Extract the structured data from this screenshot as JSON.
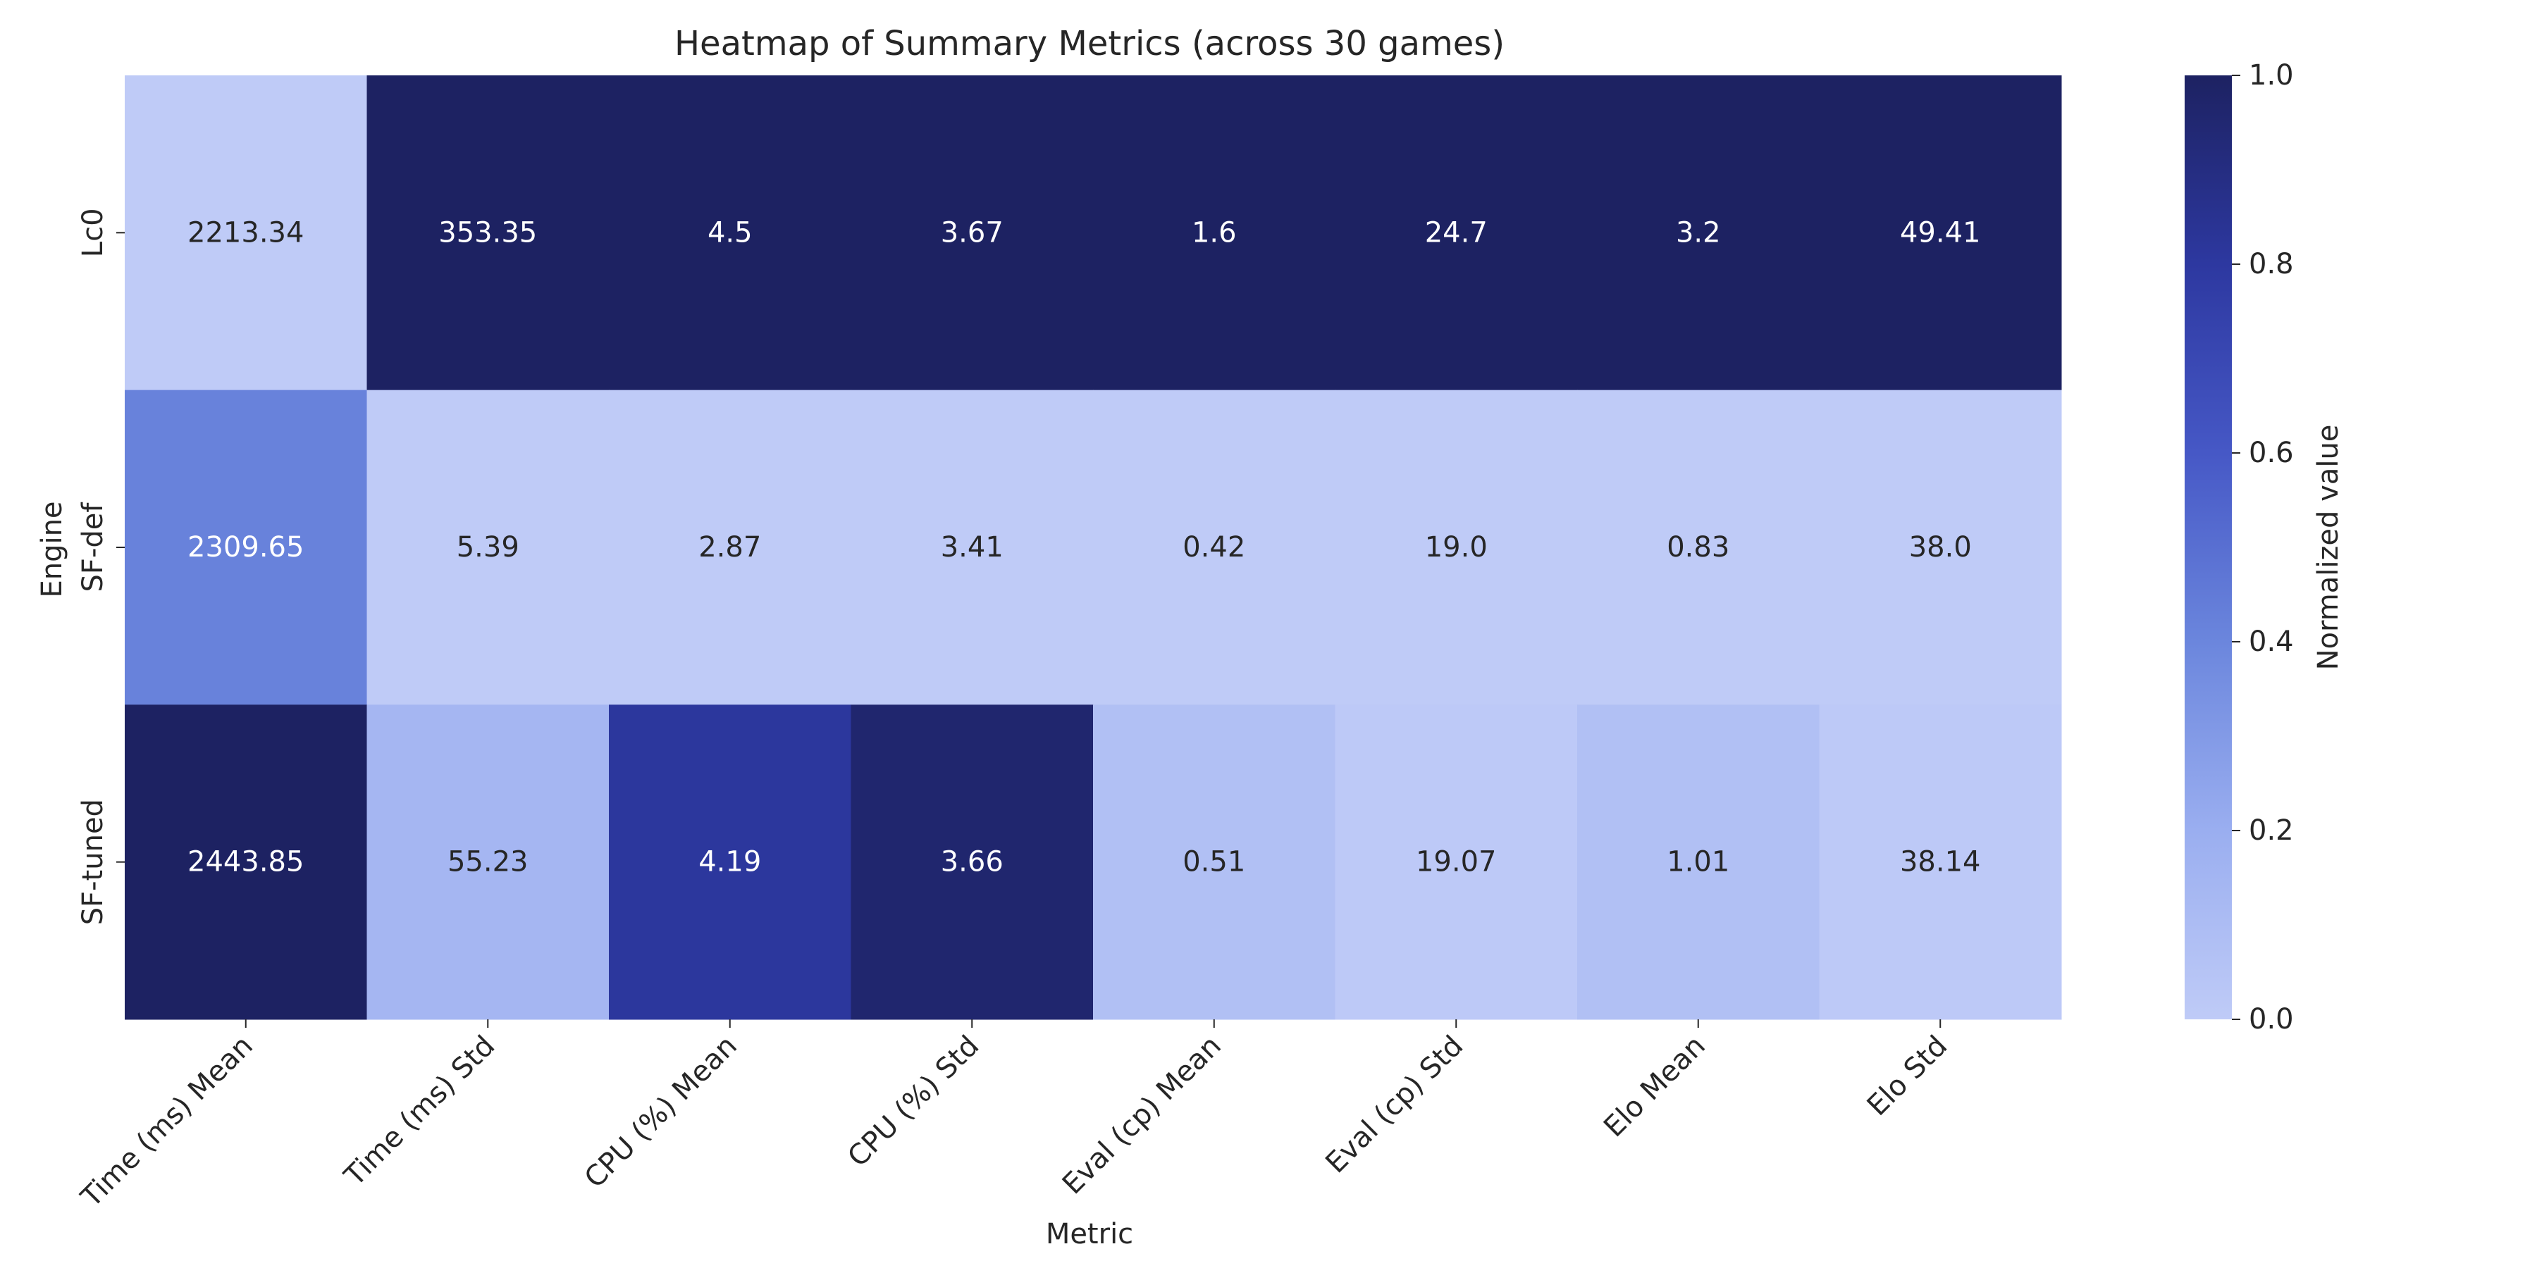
{
  "chart_data": {
    "type": "heatmap",
    "title": "Heatmap of Summary Metrics (across 30 games)",
    "xlabel": "Metric",
    "ylabel": "Engine",
    "columns": [
      "Time (ms) Mean",
      "Time (ms) Std",
      "CPU (%) Mean",
      "CPU (%) Std",
      "Eval (cp) Mean",
      "Eval (cp) Std",
      "Elo Mean",
      "Elo Std"
    ],
    "rows": [
      "Lc0",
      "SF-def",
      "SF-tuned"
    ],
    "values": [
      [
        2213.34,
        353.35,
        4.5,
        3.67,
        1.6,
        24.7,
        3.2,
        49.41
      ],
      [
        2309.65,
        5.39,
        2.87,
        3.41,
        0.42,
        19.0,
        0.83,
        38.0
      ],
      [
        2443.85,
        55.23,
        4.19,
        3.66,
        0.51,
        19.07,
        1.01,
        38.14
      ]
    ],
    "value_labels": [
      [
        "2213.34",
        "353.35",
        "4.5",
        "3.67",
        "1.6",
        "24.7",
        "3.2",
        "49.41"
      ],
      [
        "2309.65",
        "5.39",
        "2.87",
        "3.41",
        "0.42",
        "19.0",
        "0.83",
        "38.0"
      ],
      [
        "2443.85",
        "55.23",
        "4.19",
        "3.66",
        "0.51",
        "19.07",
        "1.01",
        "38.14"
      ]
    ],
    "normalization": "per-column min-max",
    "colorbar": {
      "label": "Normalized value",
      "range": [
        0,
        1
      ],
      "ticks": [
        "0.0",
        "0.2",
        "0.4",
        "0.6",
        "0.8",
        "1.0"
      ]
    },
    "colormap": [
      {
        "stop": 0.0,
        "color": "#bfcbf7"
      },
      {
        "stop": 0.2,
        "color": "#9aaef0"
      },
      {
        "stop": 0.4,
        "color": "#6b86dd"
      },
      {
        "stop": 0.6,
        "color": "#4658c6"
      },
      {
        "stop": 0.8,
        "color": "#2d38a0"
      },
      {
        "stop": 1.0,
        "color": "#1d2262"
      }
    ],
    "grid": false
  }
}
